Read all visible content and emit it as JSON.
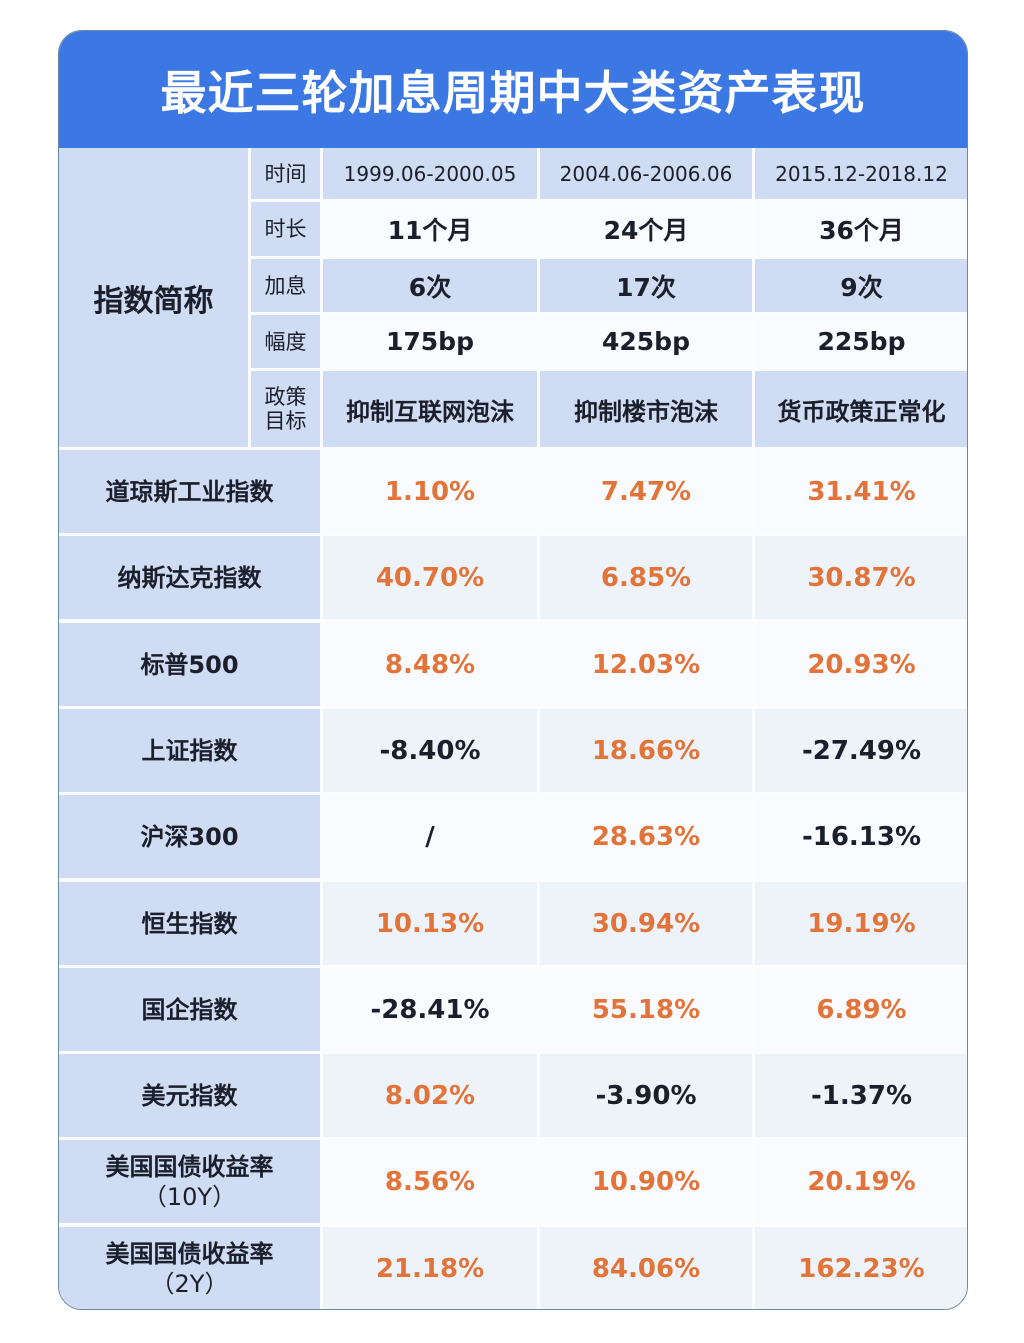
{
  "title": "最近三轮加息周期中大类资产表现",
  "colors": {
    "title_bg": "#3b78e3",
    "header_bg": "#cfdcf4",
    "positive": "#e2743a",
    "negative": "#1a1f2b"
  },
  "header": {
    "corner_label": "指数简称",
    "row_labels": {
      "time": "时间",
      "duration": "时长",
      "hikes": "加息",
      "magnitude": "幅度",
      "goal_line1": "政策",
      "goal_line2": "目标"
    },
    "periods": [
      {
        "time": "1999.06-2000.05",
        "duration": "11个月",
        "hikes": "6次",
        "magnitude": "175bp",
        "goal": "抑制互联网泡沫"
      },
      {
        "time": "2004.06-2006.06",
        "duration": "24个月",
        "hikes": "17次",
        "magnitude": "425bp",
        "goal": "抑制楼市泡沫"
      },
      {
        "time": "2015.12-2018.12",
        "duration": "36个月",
        "hikes": "9次",
        "magnitude": "225bp",
        "goal": "货币政策正常化"
      }
    ]
  },
  "rows": [
    {
      "label": "道琼斯工业指数",
      "sub": "",
      "values": [
        "1.10%",
        "7.47%",
        "31.41%"
      ]
    },
    {
      "label": "纳斯达克指数",
      "sub": "",
      "values": [
        "40.70%",
        "6.85%",
        "30.87%"
      ]
    },
    {
      "label": "标普500",
      "sub": "",
      "values": [
        "8.48%",
        "12.03%",
        "20.93%"
      ]
    },
    {
      "label": "上证指数",
      "sub": "",
      "values": [
        "-8.40%",
        "18.66%",
        "-27.49%"
      ]
    },
    {
      "label": "沪深300",
      "sub": "",
      "values": [
        "/",
        "28.63%",
        "-16.13%"
      ]
    },
    {
      "label": "恒生指数",
      "sub": "",
      "values": [
        "10.13%",
        "30.94%",
        "19.19%"
      ]
    },
    {
      "label": "国企指数",
      "sub": "",
      "values": [
        "-28.41%",
        "55.18%",
        "6.89%"
      ]
    },
    {
      "label": "美元指数",
      "sub": "",
      "values": [
        "8.02%",
        "-3.90%",
        "-1.37%"
      ]
    },
    {
      "label": "美国国债收益率",
      "sub": "（10Y）",
      "values": [
        "8.56%",
        "10.90%",
        "20.19%"
      ]
    },
    {
      "label": "美国国债收益率",
      "sub": "（2Y）",
      "values": [
        "21.18%",
        "84.06%",
        "162.23%"
      ]
    }
  ]
}
